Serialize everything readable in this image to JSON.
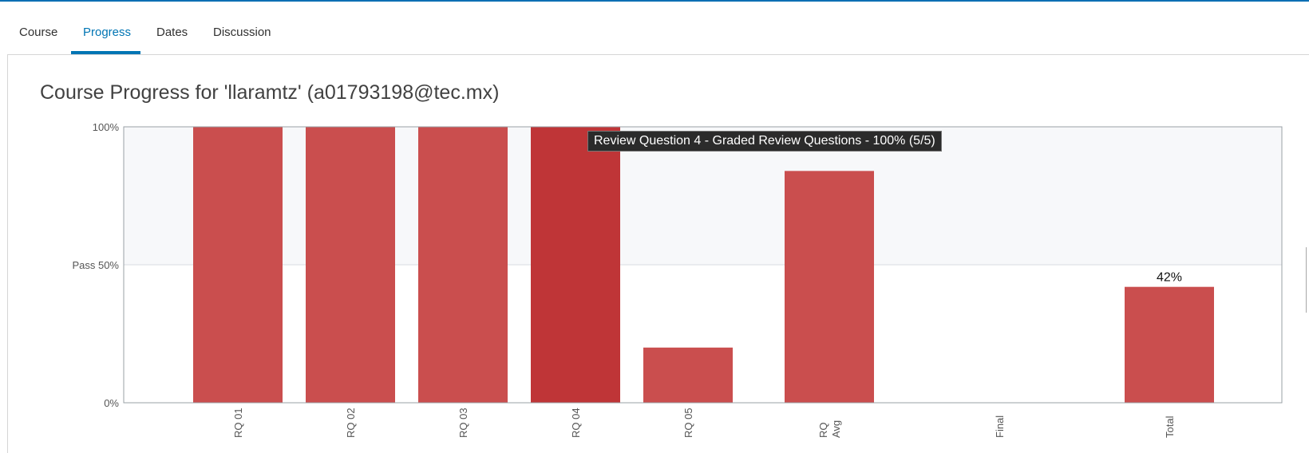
{
  "tabs": [
    {
      "label": "Course",
      "active": false
    },
    {
      "label": "Progress",
      "active": true
    },
    {
      "label": "Dates",
      "active": false
    },
    {
      "label": "Discussion",
      "active": false
    }
  ],
  "page": {
    "title": "Course Progress for 'llaramtz' (a01793198@tec.mx)"
  },
  "tooltip": {
    "text": "Review Question 4 - Graded Review Questions - 100% (5/5)"
  },
  "colors": {
    "accent": "#0075b4",
    "bar": "#c94a4a",
    "bar_highlight": "#bf3537",
    "pass_band": "#f7f8fa"
  },
  "chart_data": {
    "type": "bar",
    "categories": [
      {
        "label": "RQ 01",
        "value": 100
      },
      {
        "label": "RQ 02",
        "value": 100
      },
      {
        "label": "RQ 03",
        "value": 100
      },
      {
        "label": "RQ 04",
        "value": 100
      },
      {
        "label": "RQ 05",
        "value": 20
      },
      {
        "label": "RQ\nAvg",
        "value": 84
      },
      {
        "label": "Final",
        "value": 0
      },
      {
        "label": "Total",
        "value": 42
      }
    ],
    "highlighted": "RQ 04",
    "y_ticks": [
      {
        "value": 100,
        "label": "100%"
      },
      {
        "value": 50,
        "label": "Pass 50%"
      },
      {
        "value": 0,
        "label": "0%"
      }
    ],
    "ylim": [
      0,
      100
    ],
    "pass_threshold": 50,
    "data_labels": [
      {
        "category": "Total",
        "text": "42%"
      }
    ]
  }
}
